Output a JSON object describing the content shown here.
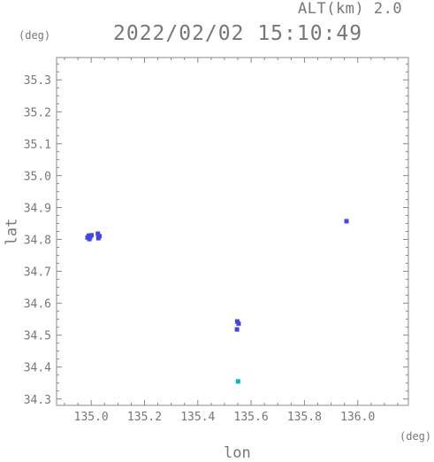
{
  "header": {
    "alt_label": "ALT(km) 2.0",
    "datetime": "2022/02/02 15:10:49"
  },
  "chart_data": {
    "type": "scatter",
    "title": "2022/02/02 15:10:49",
    "xlabel": "lon",
    "ylabel": "lat",
    "x_unit": "(deg)",
    "y_unit": "(deg)",
    "xlim": [
      134.87,
      136.19
    ],
    "ylim": [
      34.28,
      35.37
    ],
    "x_ticks": [
      135.0,
      135.2,
      135.4,
      135.6,
      135.8,
      136.0
    ],
    "x_tick_labels": [
      "135.0",
      "135.2",
      "135.4",
      "135.6",
      "135.8",
      "136.0"
    ],
    "y_ticks": [
      34.3,
      34.4,
      34.5,
      34.6,
      34.7,
      34.8,
      34.9,
      35.0,
      35.1,
      35.2,
      35.3
    ],
    "y_tick_labels": [
      "34.3",
      "34.4",
      "34.5",
      "34.6",
      "34.7",
      "34.8",
      "34.9",
      "35.0",
      "35.1",
      "35.2",
      "35.3"
    ],
    "grid": false,
    "colors": {
      "main": "#4444ee",
      "minor": "#00bbbb",
      "axis": "#888888"
    },
    "points": [
      {
        "x": 134.986,
        "y": 34.806,
        "color": "#4444ee"
      },
      {
        "x": 134.991,
        "y": 34.812,
        "color": "#4444ee"
      },
      {
        "x": 134.996,
        "y": 34.807,
        "color": "#4444ee"
      },
      {
        "x": 135.001,
        "y": 34.813,
        "color": "#4444ee"
      },
      {
        "x": 134.993,
        "y": 34.801,
        "color": "#4444ee"
      },
      {
        "x": 135.025,
        "y": 34.818,
        "color": "#4444ee"
      },
      {
        "x": 135.031,
        "y": 34.81,
        "color": "#4444ee"
      },
      {
        "x": 135.027,
        "y": 34.804,
        "color": "#4444ee"
      },
      {
        "x": 135.958,
        "y": 34.857,
        "color": "#4444ee"
      },
      {
        "x": 135.548,
        "y": 34.543,
        "color": "#4444ee"
      },
      {
        "x": 135.553,
        "y": 34.536,
        "color": "#4444ee"
      },
      {
        "x": 135.547,
        "y": 34.518,
        "color": "#4444ee"
      },
      {
        "x": 135.551,
        "y": 34.355,
        "color": "#00bbbb"
      }
    ]
  }
}
